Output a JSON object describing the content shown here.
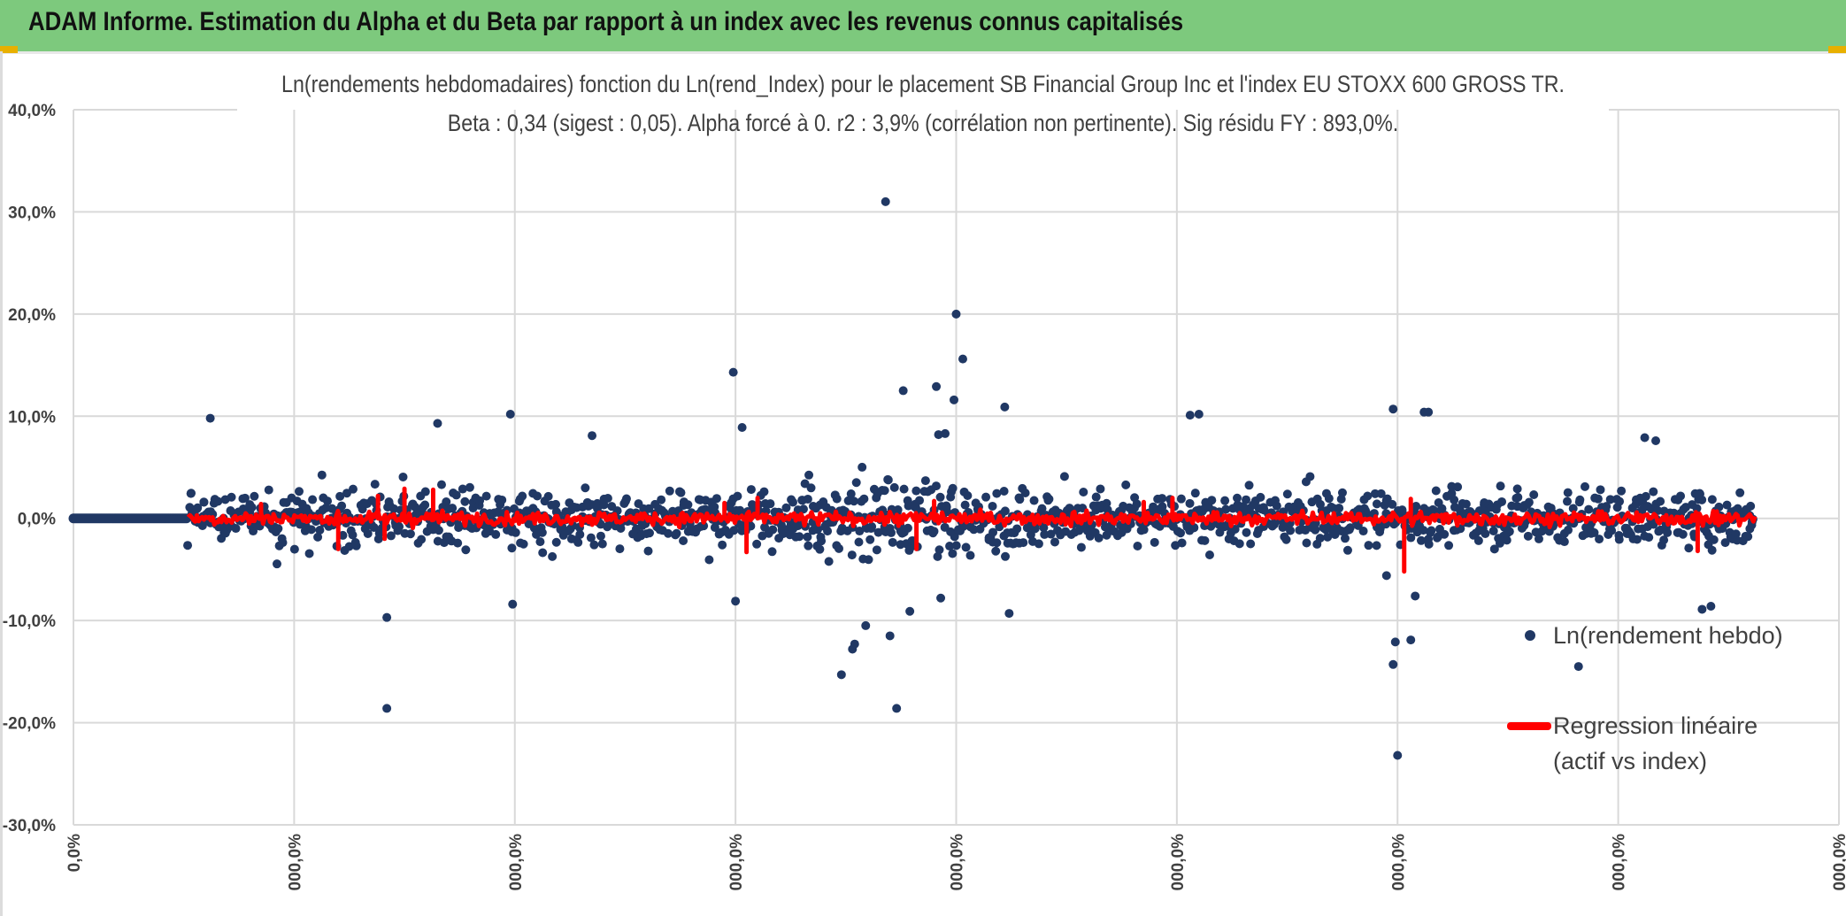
{
  "header": {
    "title": "ADAM Informe. Estimation du Alpha et du Beta par rapport à un index avec les revenus connus capitalisés"
  },
  "colors": {
    "header_bg": "#7dc97d",
    "points": "#203864",
    "regression": "#ff0000",
    "grid": "#d9d9d9",
    "text": "#404040"
  },
  "chart_data": {
    "type": "scatter",
    "title_line1": "Ln(rendements hebdomadaires) fonction du Ln(rend_Index) pour le placement SB Financial Group Inc et l'index EU STOXX 600 GROSS TR.",
    "title_line2": "Beta : 0,34 (sigest : 0,05). Alpha forcé à 0. r2 : 3,9% (corrélation non pertinente). Sig résidu FY : 893,0%.",
    "y_ticks": [
      "40,0%",
      "30,0%",
      "20,0%",
      "10,0%",
      "0,0%",
      "-10,0%",
      "-20,0%",
      "-30,0%"
    ],
    "x_ticks": [
      "0,0%",
      "000,0%",
      "000,0%",
      "000,0%",
      "000,0%",
      "000,0%",
      "000,0%",
      "000,0%",
      "000,0%"
    ],
    "ylim": [
      -30,
      40
    ],
    "x_range": [
      0,
      8
    ],
    "series": [
      {
        "name": "Ln(rendement hebdo)",
        "marker": "point",
        "flat_segment": {
          "x_start": 0.0,
          "x_end": 0.52,
          "y": 0.0
        },
        "scatter_range": [
          0.52,
          7.62
        ],
        "outliers": [
          {
            "x": 3.68,
            "y": 31.0
          },
          {
            "x": 4.0,
            "y": 20.0
          },
          {
            "x": 4.03,
            "y": 15.6
          },
          {
            "x": 2.99,
            "y": 14.3
          },
          {
            "x": 3.91,
            "y": 12.9
          },
          {
            "x": 3.76,
            "y": 12.5
          },
          {
            "x": 3.99,
            "y": 11.6
          },
          {
            "x": 4.22,
            "y": 10.9
          },
          {
            "x": 5.98,
            "y": 10.7
          },
          {
            "x": 6.12,
            "y": 10.4
          },
          {
            "x": 6.14,
            "y": 10.4
          },
          {
            "x": 1.98,
            "y": 10.2
          },
          {
            "x": 5.06,
            "y": 10.1
          },
          {
            "x": 5.1,
            "y": 10.2
          },
          {
            "x": 0.62,
            "y": 9.8
          },
          {
            "x": 1.65,
            "y": 9.3
          },
          {
            "x": 3.03,
            "y": 8.9
          },
          {
            "x": 2.35,
            "y": 8.1
          },
          {
            "x": 3.95,
            "y": 8.3
          },
          {
            "x": 3.92,
            "y": 8.2
          },
          {
            "x": 7.12,
            "y": 7.9
          },
          {
            "x": 7.17,
            "y": 7.6
          },
          {
            "x": 1.42,
            "y": -18.6
          },
          {
            "x": 3.73,
            "y": -18.6
          },
          {
            "x": 3.48,
            "y": -15.3
          },
          {
            "x": 3.54,
            "y": -12.3
          },
          {
            "x": 3.53,
            "y": -12.8
          },
          {
            "x": 3.59,
            "y": -10.5
          },
          {
            "x": 3.7,
            "y": -11.5
          },
          {
            "x": 4.24,
            "y": -9.3
          },
          {
            "x": 1.42,
            "y": -9.7
          },
          {
            "x": 1.99,
            "y": -8.4
          },
          {
            "x": 3.0,
            "y": -8.1
          },
          {
            "x": 3.93,
            "y": -7.8
          },
          {
            "x": 3.79,
            "y": -9.1
          },
          {
            "x": 5.98,
            "y": -14.3
          },
          {
            "x": 5.99,
            "y": -12.1
          },
          {
            "x": 6.06,
            "y": -11.9
          },
          {
            "x": 6.0,
            "y": -23.2
          },
          {
            "x": 6.82,
            "y": -14.5
          },
          {
            "x": 7.38,
            "y": -8.9
          },
          {
            "x": 7.42,
            "y": -8.6
          },
          {
            "x": 5.95,
            "y": -5.6
          },
          {
            "x": 6.08,
            "y": -7.6
          }
        ]
      },
      {
        "name": "Regression linéaire (actif vs index)",
        "marker": "line",
        "beta": 0.34,
        "segment_range": [
          0.52,
          7.62
        ],
        "spikes": [
          {
            "x": 1.38,
            "y": 2.2
          },
          {
            "x": 1.41,
            "y": -2.0
          },
          {
            "x": 1.5,
            "y": 2.9
          },
          {
            "x": 1.63,
            "y": 2.8
          },
          {
            "x": 1.2,
            "y": -3.0
          },
          {
            "x": 3.05,
            "y": -3.3
          },
          {
            "x": 3.1,
            "y": 2.0
          },
          {
            "x": 3.82,
            "y": -3.0
          },
          {
            "x": 3.9,
            "y": 1.7
          },
          {
            "x": 4.85,
            "y": 1.6
          },
          {
            "x": 4.98,
            "y": 2.0
          },
          {
            "x": 6.03,
            "y": -5.2
          },
          {
            "x": 6.06,
            "y": 1.9
          },
          {
            "x": 7.36,
            "y": -3.2
          },
          {
            "x": 2.95,
            "y": 1.5
          },
          {
            "x": 0.85,
            "y": 1.4
          }
        ]
      }
    ],
    "legend": {
      "position": "right",
      "entries": [
        {
          "label": "Ln(rendement hebdo)"
        },
        {
          "label_line1": "Regression linéaire",
          "label_line2": "(actif vs index)"
        }
      ]
    }
  }
}
